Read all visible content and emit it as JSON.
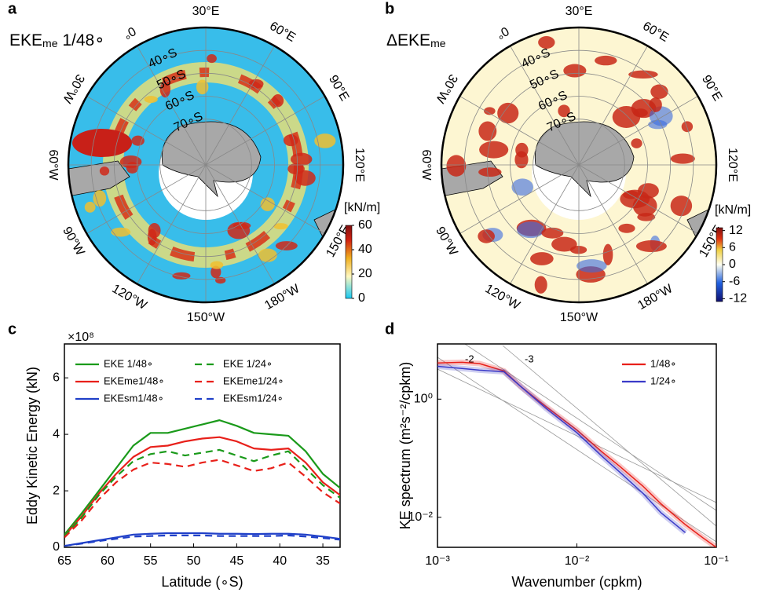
{
  "maps": [
    {
      "panel_label": "a",
      "title": "EKE",
      "title_sub": "me",
      "title_suffix": " 1/48∘",
      "lon_labels": [
        "30°E",
        "60°E",
        "90°E",
        "120°E",
        "150°E",
        "180°W",
        "150°W",
        "120°W",
        "90°W",
        "60°W",
        "30°W",
        "0°"
      ],
      "lat_labels": [
        "40∘S",
        "50∘S",
        "60∘S",
        "70∘S"
      ],
      "colorbar": {
        "unit": "[kN/m]",
        "clim": [
          0,
          60
        ],
        "ticks": [
          0,
          20,
          40,
          60
        ]
      }
    },
    {
      "panel_label": "b",
      "title": "ΔEKE",
      "title_sub": "me",
      "lon_labels": [
        "30°E",
        "60°E",
        "90°E",
        "120°E",
        "150°E",
        "180°W",
        "150°W",
        "120°W",
        "90°W",
        "60°W",
        "30°W",
        "0°"
      ],
      "lat_labels": [
        "40∘S",
        "50∘S",
        "60∘S",
        "70∘S"
      ],
      "colorbar": {
        "unit": "[kN/m]",
        "clim": [
          -13,
          13
        ],
        "ticks": [
          -12,
          -6,
          0,
          6,
          12
        ]
      }
    }
  ],
  "chart_data": [
    {
      "type": "line",
      "panel_label": "c",
      "multiplier": "×10⁸",
      "xlabel": "Latitude (∘S)",
      "ylabel": "Eddy Kinetic Energy (kN)",
      "x": [
        65,
        63,
        61,
        59,
        57,
        55,
        53,
        51,
        49,
        47,
        45,
        43,
        41,
        39,
        37,
        35,
        33
      ],
      "xlim": [
        65,
        33
      ],
      "xticks": [
        65,
        60,
        55,
        50,
        45,
        40,
        35
      ],
      "ylim": [
        0,
        7.2
      ],
      "yticks": [
        0,
        2,
        4,
        6
      ],
      "legend": "upper left",
      "legend_columns": 2,
      "series": [
        {
          "name": "EKE 1/48∘",
          "color": "#1a9a1a",
          "dashed": false,
          "values": [
            0.45,
            1.2,
            2.0,
            2.8,
            3.6,
            4.05,
            4.05,
            4.2,
            4.35,
            4.5,
            4.3,
            4.05,
            4.0,
            3.95,
            3.4,
            2.6,
            2.1
          ]
        },
        {
          "name": "EKEme1/48∘",
          "color": "#e8201a",
          "dashed": false,
          "values": [
            0.4,
            1.1,
            1.9,
            2.6,
            3.2,
            3.55,
            3.6,
            3.75,
            3.85,
            3.9,
            3.75,
            3.5,
            3.45,
            3.5,
            3.0,
            2.3,
            1.85
          ]
        },
        {
          "name": "EKEsm1/48∘",
          "color": "#2040c8",
          "dashed": false,
          "values": [
            0.05,
            0.15,
            0.25,
            0.35,
            0.45,
            0.48,
            0.5,
            0.5,
            0.5,
            0.48,
            0.48,
            0.47,
            0.48,
            0.48,
            0.45,
            0.38,
            0.3
          ]
        },
        {
          "name": "EKE 1/24∘",
          "color": "#1a9a1a",
          "dashed": true,
          "values": [
            0.4,
            1.05,
            1.85,
            2.5,
            3.05,
            3.3,
            3.4,
            3.25,
            3.35,
            3.45,
            3.25,
            3.05,
            3.25,
            3.4,
            2.8,
            2.2,
            1.75
          ]
        },
        {
          "name": "EKEme1/24∘",
          "color": "#e8201a",
          "dashed": true,
          "values": [
            0.35,
            0.95,
            1.7,
            2.3,
            2.75,
            3.0,
            2.95,
            2.85,
            3.0,
            3.1,
            2.9,
            2.7,
            2.8,
            3.0,
            2.5,
            1.95,
            1.55
          ]
        },
        {
          "name": "EKEsm1/24∘",
          "color": "#2040c8",
          "dashed": true,
          "values": [
            0.05,
            0.13,
            0.22,
            0.3,
            0.38,
            0.4,
            0.42,
            0.42,
            0.42,
            0.4,
            0.4,
            0.4,
            0.4,
            0.42,
            0.38,
            0.33,
            0.27
          ]
        }
      ]
    },
    {
      "type": "line",
      "panel_label": "d",
      "log_x": true,
      "log_y": true,
      "xlabel": "Wavenumber (cpkm)",
      "ylabel": "KE spectrum (m²s⁻²/cpkm)",
      "annotations": [
        "-2",
        "-3"
      ],
      "x": [
        0.001,
        0.0015,
        0.002,
        0.003,
        0.004,
        0.006,
        0.01,
        0.015,
        0.02,
        0.03,
        0.04,
        0.06,
        0.08,
        0.1
      ],
      "xlim": [
        0.001,
        0.1
      ],
      "xticks": [
        {
          "value": 0.001,
          "label": "10⁻³"
        },
        {
          "value": 0.01,
          "label": "10⁻²"
        },
        {
          "value": 0.1,
          "label": "10⁻¹"
        }
      ],
      "ylim": [
        0.0031,
        8.6
      ],
      "yticks": [
        {
          "value": 0.01,
          "label": "10⁻²"
        },
        {
          "value": 1,
          "label": "10⁰"
        }
      ],
      "legend": "upper right",
      "legend_columns": 1,
      "series": [
        {
          "name": "1/48∘",
          "color": "#e8201a",
          "dashed": false,
          "values": [
            4.1,
            4.2,
            4.0,
            3.0,
            1.6,
            0.75,
            0.3,
            0.13,
            0.075,
            0.033,
            0.017,
            0.0075,
            0.0045,
            0.0031
          ]
        },
        {
          "name": "1/24∘",
          "color": "#3a3ac8",
          "dashed": false,
          "values": [
            3.6,
            3.3,
            3.1,
            2.9,
            1.6,
            0.7,
            0.27,
            0.11,
            0.06,
            0.025,
            0.012,
            0.0055,
            null,
            null
          ]
        }
      ]
    }
  ]
}
